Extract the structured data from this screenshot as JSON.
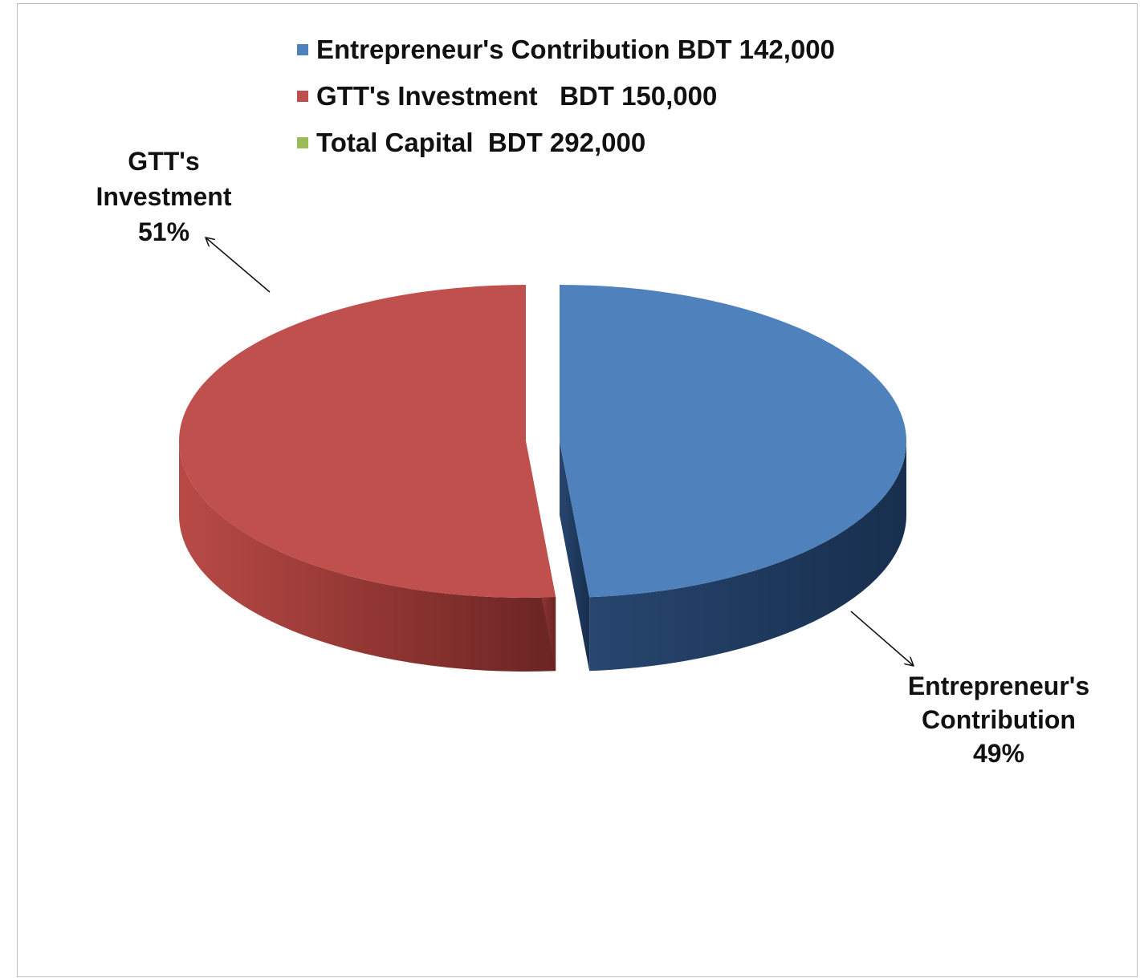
{
  "chart_data": {
    "type": "pie",
    "style": "3d-exploded",
    "categories": [
      "Entrepreneur's Contribution",
      "GTT's Investment",
      "Total Capital"
    ],
    "values": [
      142000,
      150000,
      0
    ],
    "percentages": [
      49,
      51,
      0
    ],
    "colors": [
      "#4f81bd",
      "#c0504d",
      "#9bbb59"
    ],
    "legend": [
      {
        "label": "Entrepreneur's Contribution BDT 142,000",
        "color": "#4f81bd"
      },
      {
        "label": "GTT's Investment   BDT 150,000",
        "color": "#c0504d"
      },
      {
        "label": "Total Capital  BDT 292,000",
        "color": "#9bbb59"
      }
    ],
    "data_labels": [
      {
        "lines": [
          "Entrepreneur's",
          "Contribution",
          "49%"
        ]
      },
      {
        "lines": [
          "GTT's",
          "Investment",
          "51%"
        ]
      }
    ],
    "legend_position": "top"
  }
}
